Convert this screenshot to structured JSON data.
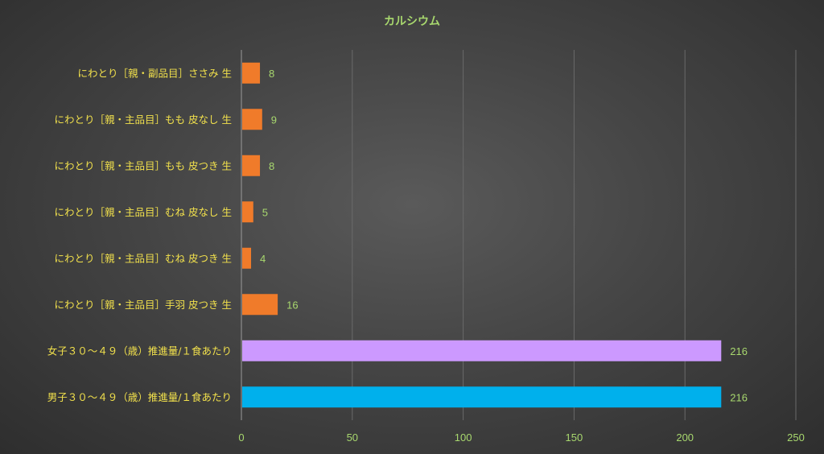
{
  "chart_data": {
    "type": "bar",
    "orientation": "horizontal",
    "title": "カルシウム",
    "categories": [
      "にわとり［親・副品目］ささみ 生",
      "にわとり［親・主品目］もも 皮なし 生",
      "にわとり［親・主品目］もも 皮つき 生",
      "にわとり［親・主品目］むね 皮なし 生",
      "にわとり［親・主品目］むね 皮つき 生",
      "にわとり［親・主品目］手羽 皮つき 生",
      "女子３０～４９（歳）推進量/１食あたり",
      "男子３０～４９（歳）推進量/１食あたり"
    ],
    "values": [
      8,
      9,
      8,
      5,
      4,
      16,
      216,
      216
    ],
    "bar_colors": [
      "#f07b2a",
      "#f07b2a",
      "#f07b2a",
      "#f07b2a",
      "#f07b2a",
      "#f07b2a",
      "#cc99ff",
      "#00b0ec"
    ],
    "xlim": [
      0,
      250
    ],
    "xticks": [
      0,
      50,
      100,
      150,
      200,
      250
    ],
    "xlabel": "",
    "ylabel": "",
    "grid": "vertical",
    "data_labels": true,
    "colors": {
      "title": "#a8d86e",
      "category_labels": "#f2e14c",
      "tick_labels": "#a8d86e",
      "gridlines": "#6a6a6a"
    }
  }
}
